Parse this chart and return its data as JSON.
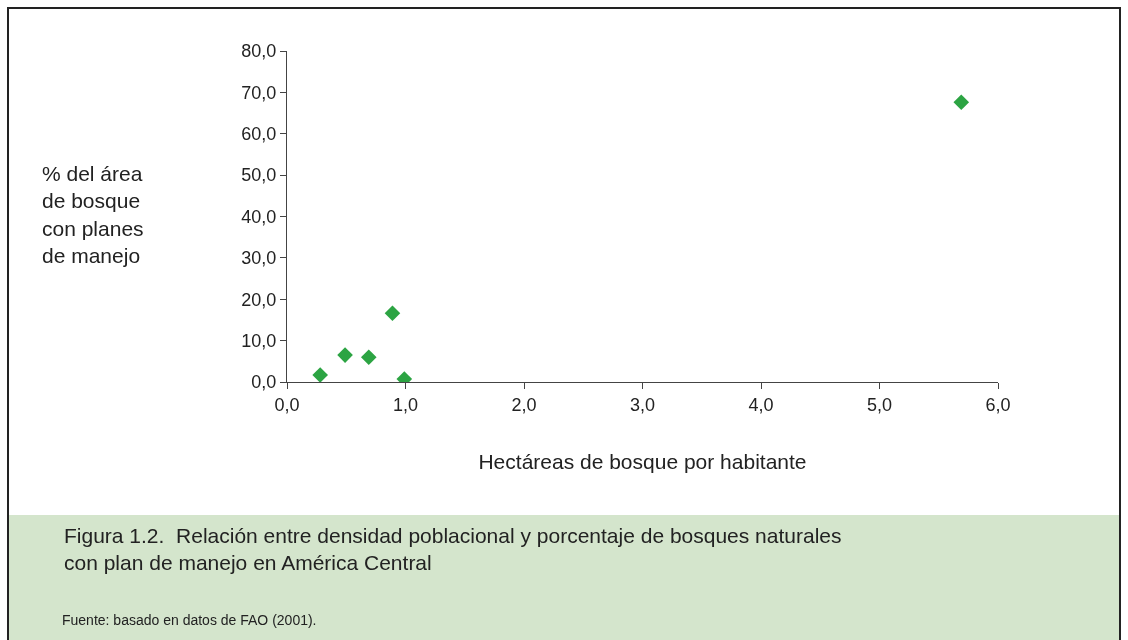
{
  "chart_data": {
    "type": "scatter",
    "title": "Figura 1.2.  Relación entre densidad poblacional y porcentaje de bosques naturales con plan de manejo en América Central",
    "xlabel": "Hectáreas de bosque por habitante",
    "ylabel": "% del área de bosque con planes de manejo",
    "annotations": [
      "Fuente: basado en datos de FAO (2001)."
    ],
    "x": [
      0.28,
      0.49,
      0.69,
      0.89,
      0.99,
      5.69
    ],
    "series": [
      {
        "color": "#2ca443",
        "values": [
          1.7,
          6.5,
          6.0,
          16.6,
          0.7,
          67.6
        ]
      }
    ],
    "xlim": [
      0,
      6
    ],
    "ylim": [
      0,
      80
    ],
    "xticks": [
      {
        "value": 0,
        "label": "0,0"
      },
      {
        "value": 1,
        "label": "1,0"
      },
      {
        "value": 2,
        "label": "2,0"
      },
      {
        "value": 3,
        "label": "3,0"
      },
      {
        "value": 4,
        "label": "4,0"
      },
      {
        "value": 5,
        "label": "5,0"
      },
      {
        "value": 6,
        "label": "6,0"
      }
    ],
    "yticks": [
      {
        "value": 0,
        "label": "0,0"
      },
      {
        "value": 10,
        "label": "10,0"
      },
      {
        "value": 20,
        "label": "20,0"
      },
      {
        "value": 30,
        "label": "30,0"
      },
      {
        "value": 40,
        "label": "40,0"
      },
      {
        "value": 50,
        "label": "50,0"
      },
      {
        "value": 60,
        "label": "60,0"
      },
      {
        "value": 70,
        "label": "70,0"
      },
      {
        "value": 80,
        "label": "80,0"
      }
    ],
    "marker": "diamond"
  }
}
